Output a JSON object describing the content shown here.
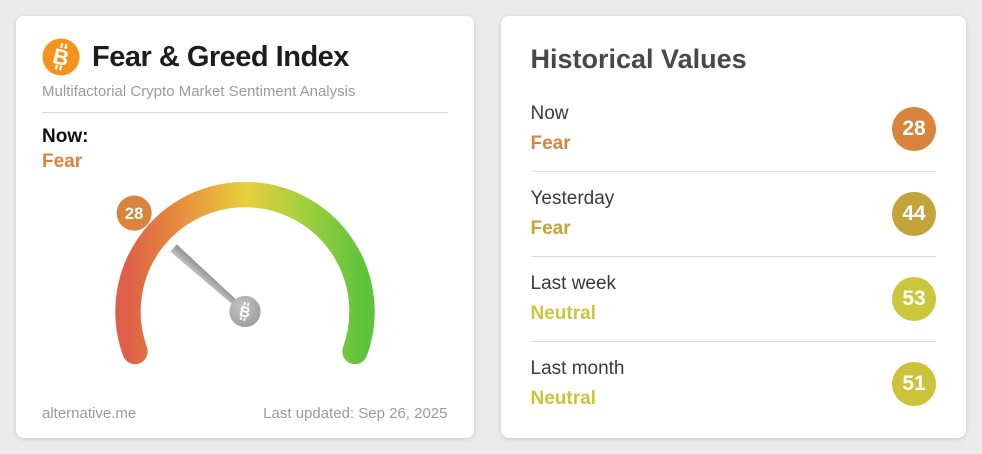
{
  "page_bg": "#ebebeb",
  "icons": {
    "header_icon": "bitcoin-icon",
    "hub_icon": "bitcoin-hub-icon",
    "bitcoin_glyph": "B",
    "bitcoin_orange": "#f7931a"
  },
  "left_card": {
    "title": "Fear & Greed Index",
    "subtitle": "Multifactorial Crypto Market Sentiment Analysis",
    "now_label": "Now:",
    "now_classification": "Fear",
    "now_color": "#d9843c",
    "footer_site": "alternative.me",
    "footer_updated": "Last updated: Sep 26, 2025"
  },
  "gauge": {
    "value": 28,
    "min": 0,
    "max": 100,
    "start_angle": 200,
    "end_angle": -20,
    "badge_value": "28",
    "badge_color": "#d9843c",
    "arc_colors": [
      "#df6048",
      "#e8953d",
      "#e8cf3d",
      "#a6cf3f",
      "#5fc43c"
    ],
    "needle_color_light": "#bdbdbd",
    "needle_color_dark": "#8f8f8f"
  },
  "right_card": {
    "title": "Historical Values",
    "rows": [
      {
        "label": "Now",
        "classification": "Fear",
        "value": "28",
        "color": "#d9843c"
      },
      {
        "label": "Yesterday",
        "classification": "Fear",
        "value": "44",
        "color": "#c3a33a"
      },
      {
        "label": "Last week",
        "classification": "Neutral",
        "value": "53",
        "color": "#ccc53e"
      },
      {
        "label": "Last month",
        "classification": "Neutral",
        "value": "51",
        "color": "#cdc33a"
      }
    ]
  },
  "chart_data": {
    "type": "gauge",
    "title": "Fear & Greed Index",
    "subtitle": "Multifactorial Crypto Market Sentiment Analysis",
    "value": 28,
    "min": 0,
    "max": 100,
    "classification": "Fear",
    "scale_colors": [
      "#df6048",
      "#e8953d",
      "#e8cf3d",
      "#a6cf3f",
      "#5fc43c"
    ],
    "history": [
      {
        "label": "Now",
        "value": 28,
        "classification": "Fear"
      },
      {
        "label": "Yesterday",
        "value": 44,
        "classification": "Fear"
      },
      {
        "label": "Last week",
        "value": 53,
        "classification": "Neutral"
      },
      {
        "label": "Last month",
        "value": 51,
        "classification": "Neutral"
      }
    ],
    "last_updated": "Sep 26, 2025",
    "source": "alternative.me"
  }
}
